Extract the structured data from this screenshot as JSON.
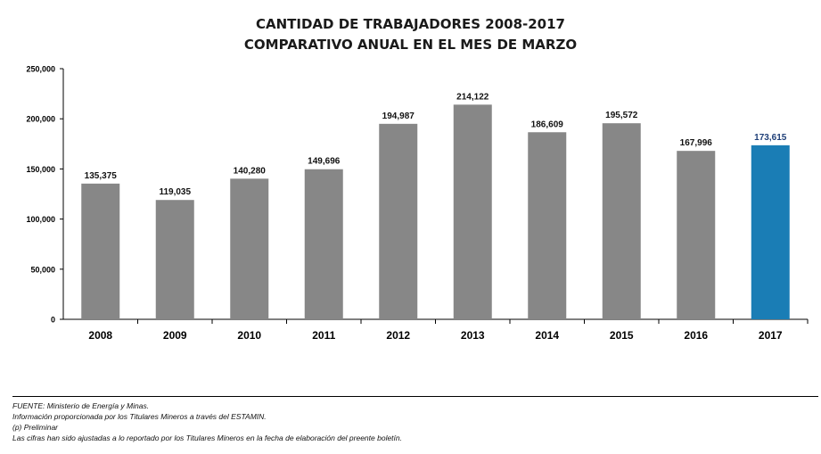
{
  "chart_data": {
    "type": "bar",
    "title": "CANTIDAD DE TRABAJADORES 2008-2017",
    "subtitle": "COMPARATIVO ANUAL EN EL MES DE MARZO",
    "categories": [
      "2008",
      "2009",
      "2010",
      "2011",
      "2012",
      "2013",
      "2014",
      "2015",
      "2016",
      "2017"
    ],
    "values": [
      135375,
      119035,
      140280,
      149696,
      194987,
      214122,
      186609,
      195572,
      167996,
      173615
    ],
    "data_labels": [
      "135,375",
      "119,035",
      "140,280",
      "149,696",
      "194,987",
      "214,122",
      "186,609",
      "195,572",
      "167,996",
      "173,615"
    ],
    "ylim": [
      0,
      250000
    ],
    "yticks": [
      0,
      50000,
      100000,
      150000,
      200000,
      250000
    ],
    "ytick_labels": [
      "0",
      "50,000",
      "100,000",
      "150,000",
      "200,000",
      "250,000"
    ],
    "grid": false,
    "colors": {
      "bar": "#878787",
      "highlight": "#1a7db5",
      "highlight_label": "#1f3f78",
      "label": "#111111"
    },
    "highlight_index": 9
  },
  "footer": {
    "source": "FUENTE: Ministerio de Energía y Minas.",
    "info": "Información proporcionada por los Titulares Mineros a través del ESTAMIN.",
    "note": "(p) Preliminar",
    "adjust": "Las cifras han sido ajustadas a lo reportado por los Titulares Mineros en la fecha de elaboración del preente boletín."
  }
}
